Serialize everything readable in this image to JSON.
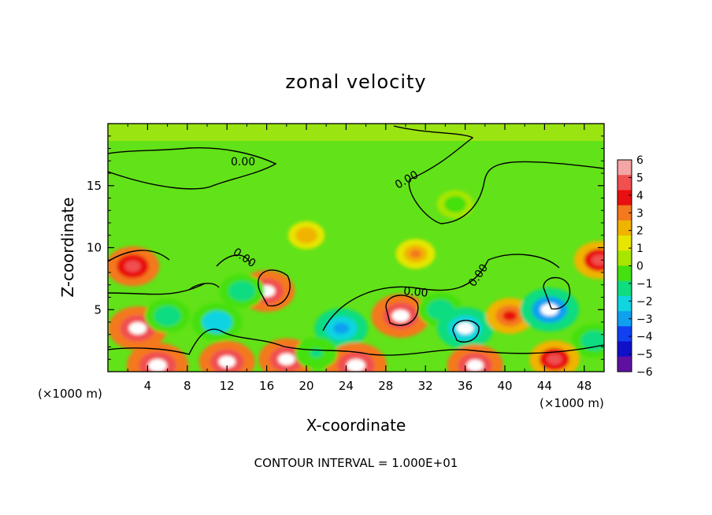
{
  "chart_data": {
    "type": "heatmap",
    "title": "zonal velocity",
    "xlabel": "X-coordinate",
    "ylabel": "Z-coordinate",
    "x_unit_left": "(×1000 m)",
    "x_unit_right": "(×1000 m)",
    "xlim": [
      0,
      50
    ],
    "ylim": [
      0,
      20
    ],
    "x_ticks": [
      4,
      8,
      12,
      16,
      20,
      24,
      28,
      32,
      36,
      40,
      44,
      48
    ],
    "y_ticks": [
      5,
      10,
      15
    ],
    "footer": "CONTOUR INTERVAL = 1.000E+01",
    "contour_label": "0.00",
    "colorbar": {
      "levels": [
        6,
        5,
        4,
        3,
        2,
        1,
        0,
        -1,
        -2,
        -3,
        -4,
        -5,
        -6
      ],
      "colors": [
        "#f4a6a6",
        "#f05050",
        "#e81010",
        "#f4781e",
        "#f0b400",
        "#e6e600",
        "#a8e600",
        "#44e010",
        "#10dc80",
        "#10d4e0",
        "#10a0f0",
        "#1040f0",
        "#1010c8",
        "#6010a0"
      ]
    },
    "features": [
      {
        "x": 2.5,
        "z": 8.5,
        "value": 4.5
      },
      {
        "x": 3,
        "z": 3.5,
        "value": 5.5
      },
      {
        "x": 5,
        "z": 0.5,
        "value": 6
      },
      {
        "x": 12,
        "z": 0.8,
        "value": 5
      },
      {
        "x": 16,
        "z": 6.5,
        "value": 5
      },
      {
        "x": 11,
        "z": 4,
        "value": -4
      },
      {
        "x": 13.5,
        "z": 6.5,
        "value": -3
      },
      {
        "x": 18,
        "z": 1,
        "value": 5
      },
      {
        "x": 23.5,
        "z": 3.5,
        "value": -4.5
      },
      {
        "x": 25,
        "z": 0.5,
        "value": 6
      },
      {
        "x": 29.5,
        "z": 4.5,
        "value": 5.5
      },
      {
        "x": 33.5,
        "z": 5,
        "value": -3
      },
      {
        "x": 36,
        "z": 3.5,
        "value": -5
      },
      {
        "x": 37,
        "z": 0.5,
        "value": 5
      },
      {
        "x": 40.5,
        "z": 4.5,
        "value": 3.5
      },
      {
        "x": 44.5,
        "z": 5,
        "value": -5.5
      },
      {
        "x": 45,
        "z": 1,
        "value": 4
      },
      {
        "x": 49.5,
        "z": 9,
        "value": 4
      },
      {
        "x": 49,
        "z": 2.5,
        "value": -3
      },
      {
        "x": 35,
        "z": 13.5,
        "value": -1.5
      },
      {
        "x": 6,
        "z": 4.5,
        "value": -3
      },
      {
        "x": 21,
        "z": 1.5,
        "value": -2.5
      },
      {
        "x": 31,
        "z": 9.5,
        "value": 2
      },
      {
        "x": 20,
        "z": 11,
        "value": 1.5
      }
    ]
  }
}
